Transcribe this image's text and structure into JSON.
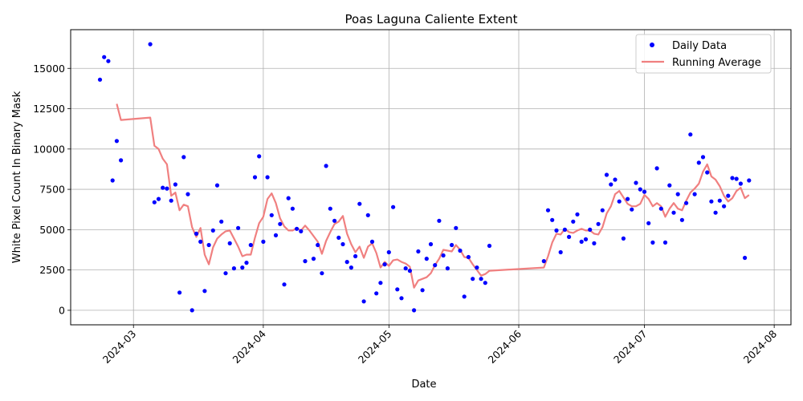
{
  "chart_data": {
    "type": "scatter",
    "title": "Poas Laguna Caliente Extent",
    "xlabel": "Date",
    "ylabel": "White Pixel Count In Binary Mask",
    "xlim": [
      "2024-02-15",
      "2024-08-05"
    ],
    "ylim": [
      -900,
      17400
    ],
    "grid": true,
    "legend_position": "top-right",
    "x_ticks": [
      "2024-03-01",
      "2024-04-01",
      "2024-05-01",
      "2024-06-01",
      "2024-07-01",
      "2024-08-01"
    ],
    "x_tick_labels": [
      "2024-03",
      "2024-04",
      "2024-05",
      "2024-06",
      "2024-07",
      "2024-08"
    ],
    "y_ticks": [
      0,
      2500,
      5000,
      7500,
      10000,
      12500,
      15000
    ],
    "y_tick_labels": [
      "0",
      "2500",
      "5000",
      "7500",
      "10000",
      "12500",
      "15000"
    ],
    "series": [
      {
        "name": "Daily Data",
        "kind": "scatter",
        "color": "#0000ff",
        "points": [
          [
            "2024-02-22",
            14300
          ],
          [
            "2024-02-23",
            15700
          ],
          [
            "2024-02-24",
            15450
          ],
          [
            "2024-02-25",
            8050
          ],
          [
            "2024-02-26",
            10500
          ],
          [
            "2024-02-27",
            9300
          ],
          [
            "2024-03-05",
            16500
          ],
          [
            "2024-03-06",
            6700
          ],
          [
            "2024-03-07",
            6900
          ],
          [
            "2024-03-08",
            7600
          ],
          [
            "2024-03-09",
            7550
          ],
          [
            "2024-03-10",
            6800
          ],
          [
            "2024-03-11",
            7800
          ],
          [
            "2024-03-12",
            1100
          ],
          [
            "2024-03-13",
            9500
          ],
          [
            "2024-03-14",
            7200
          ],
          [
            "2024-03-15",
            0
          ],
          [
            "2024-03-16",
            4750
          ],
          [
            "2024-03-17",
            4250
          ],
          [
            "2024-03-18",
            1200
          ],
          [
            "2024-03-19",
            4050
          ],
          [
            "2024-03-20",
            4950
          ],
          [
            "2024-03-21",
            7750
          ],
          [
            "2024-03-22",
            5500
          ],
          [
            "2024-03-23",
            2300
          ],
          [
            "2024-03-24",
            4150
          ],
          [
            "2024-03-25",
            2600
          ],
          [
            "2024-03-26",
            5100
          ],
          [
            "2024-03-27",
            2650
          ],
          [
            "2024-03-28",
            2950
          ],
          [
            "2024-03-29",
            4050
          ],
          [
            "2024-03-30",
            8250
          ],
          [
            "2024-03-31",
            9550
          ],
          [
            "2024-04-01",
            4250
          ],
          [
            "2024-04-02",
            8250
          ],
          [
            "2024-04-03",
            5900
          ],
          [
            "2024-04-04",
            4650
          ],
          [
            "2024-04-05",
            5350
          ],
          [
            "2024-04-06",
            1600
          ],
          [
            "2024-04-07",
            6950
          ],
          [
            "2024-04-08",
            6300
          ],
          [
            "2024-04-09",
            5050
          ],
          [
            "2024-04-10",
            4900
          ],
          [
            "2024-04-11",
            3050
          ],
          [
            "2024-04-13",
            3200
          ],
          [
            "2024-04-14",
            4050
          ],
          [
            "2024-04-15",
            2300
          ],
          [
            "2024-04-16",
            8950
          ],
          [
            "2024-04-17",
            6300
          ],
          [
            "2024-04-18",
            5550
          ],
          [
            "2024-04-19",
            4500
          ],
          [
            "2024-04-20",
            4100
          ],
          [
            "2024-04-21",
            3000
          ],
          [
            "2024-04-22",
            2650
          ],
          [
            "2024-04-23",
            3350
          ],
          [
            "2024-04-24",
            6600
          ],
          [
            "2024-04-25",
            550
          ],
          [
            "2024-04-26",
            5900
          ],
          [
            "2024-04-27",
            4250
          ],
          [
            "2024-04-28",
            1050
          ],
          [
            "2024-04-29",
            1700
          ],
          [
            "2024-04-30",
            2850
          ],
          [
            "2024-05-01",
            3600
          ],
          [
            "2024-05-02",
            6400
          ],
          [
            "2024-05-03",
            1300
          ],
          [
            "2024-05-04",
            750
          ],
          [
            "2024-05-05",
            2600
          ],
          [
            "2024-05-06",
            2450
          ],
          [
            "2024-05-07",
            0
          ],
          [
            "2024-05-08",
            3650
          ],
          [
            "2024-05-09",
            1250
          ],
          [
            "2024-05-10",
            3200
          ],
          [
            "2024-05-11",
            4100
          ],
          [
            "2024-05-12",
            2800
          ],
          [
            "2024-05-13",
            5550
          ],
          [
            "2024-05-14",
            3400
          ],
          [
            "2024-05-15",
            2600
          ],
          [
            "2024-05-16",
            4050
          ],
          [
            "2024-05-17",
            5100
          ],
          [
            "2024-05-18",
            3700
          ],
          [
            "2024-05-19",
            850
          ],
          [
            "2024-05-20",
            3300
          ],
          [
            "2024-05-21",
            1950
          ],
          [
            "2024-05-22",
            2650
          ],
          [
            "2024-05-23",
            1950
          ],
          [
            "2024-05-24",
            1700
          ],
          [
            "2024-05-25",
            4000
          ],
          [
            "2024-06-07",
            3050
          ],
          [
            "2024-06-08",
            6200
          ],
          [
            "2024-06-09",
            5600
          ],
          [
            "2024-06-10",
            4950
          ],
          [
            "2024-06-11",
            3600
          ],
          [
            "2024-06-12",
            5000
          ],
          [
            "2024-06-13",
            4550
          ],
          [
            "2024-06-14",
            5500
          ],
          [
            "2024-06-15",
            5950
          ],
          [
            "2024-06-16",
            4250
          ],
          [
            "2024-06-17",
            4400
          ],
          [
            "2024-06-18",
            5000
          ],
          [
            "2024-06-19",
            4150
          ],
          [
            "2024-06-20",
            5350
          ],
          [
            "2024-06-21",
            6200
          ],
          [
            "2024-06-22",
            8400
          ],
          [
            "2024-06-23",
            7800
          ],
          [
            "2024-06-24",
            8100
          ],
          [
            "2024-06-25",
            6750
          ],
          [
            "2024-06-26",
            4450
          ],
          [
            "2024-06-27",
            6900
          ],
          [
            "2024-06-28",
            6250
          ],
          [
            "2024-06-29",
            7900
          ],
          [
            "2024-06-30",
            7500
          ],
          [
            "2024-07-01",
            7350
          ],
          [
            "2024-07-02",
            5400
          ],
          [
            "2024-07-03",
            4200
          ],
          [
            "2024-07-04",
            8800
          ],
          [
            "2024-07-05",
            6300
          ],
          [
            "2024-07-06",
            4200
          ],
          [
            "2024-07-07",
            7750
          ],
          [
            "2024-07-08",
            6050
          ],
          [
            "2024-07-09",
            7200
          ],
          [
            "2024-07-10",
            5600
          ],
          [
            "2024-07-11",
            6650
          ],
          [
            "2024-07-12",
            10900
          ],
          [
            "2024-07-13",
            7200
          ],
          [
            "2024-07-14",
            9150
          ],
          [
            "2024-07-15",
            9500
          ],
          [
            "2024-07-16",
            8550
          ],
          [
            "2024-07-17",
            6750
          ],
          [
            "2024-07-18",
            6050
          ],
          [
            "2024-07-19",
            6800
          ],
          [
            "2024-07-20",
            6450
          ],
          [
            "2024-07-21",
            7100
          ],
          [
            "2024-07-22",
            8200
          ],
          [
            "2024-07-23",
            8150
          ],
          [
            "2024-07-24",
            7850
          ],
          [
            "2024-07-25",
            3250
          ],
          [
            "2024-07-26",
            8050
          ]
        ]
      },
      {
        "name": "Running Average",
        "kind": "line",
        "color": "#f08080",
        "points": [
          [
            "2024-02-26",
            12800
          ],
          [
            "2024-02-27",
            11800
          ],
          [
            "2024-03-05",
            11950
          ],
          [
            "2024-03-06",
            10200
          ],
          [
            "2024-03-07",
            10000
          ],
          [
            "2024-03-08",
            9400
          ],
          [
            "2024-03-09",
            9050
          ],
          [
            "2024-03-10",
            7100
          ],
          [
            "2024-03-11",
            7300
          ],
          [
            "2024-03-12",
            6200
          ],
          [
            "2024-03-13",
            6550
          ],
          [
            "2024-03-14",
            6450
          ],
          [
            "2024-03-15",
            5150
          ],
          [
            "2024-03-16",
            4550
          ],
          [
            "2024-03-17",
            5100
          ],
          [
            "2024-03-18",
            3450
          ],
          [
            "2024-03-19",
            2850
          ],
          [
            "2024-03-20",
            3900
          ],
          [
            "2024-03-21",
            4450
          ],
          [
            "2024-03-22",
            4700
          ],
          [
            "2024-03-23",
            4900
          ],
          [
            "2024-03-24",
            4950
          ],
          [
            "2024-03-25",
            4450
          ],
          [
            "2024-03-26",
            3950
          ],
          [
            "2024-03-27",
            3350
          ],
          [
            "2024-03-28",
            3450
          ],
          [
            "2024-03-29",
            3450
          ],
          [
            "2024-03-30",
            4500
          ],
          [
            "2024-03-31",
            5400
          ],
          [
            "2024-04-01",
            5800
          ],
          [
            "2024-04-02",
            6900
          ],
          [
            "2024-04-03",
            7250
          ],
          [
            "2024-04-04",
            6650
          ],
          [
            "2024-04-05",
            5700
          ],
          [
            "2024-04-06",
            5200
          ],
          [
            "2024-04-07",
            4950
          ],
          [
            "2024-04-08",
            4950
          ],
          [
            "2024-04-09",
            5100
          ],
          [
            "2024-04-10",
            4950
          ],
          [
            "2024-04-11",
            5250
          ],
          [
            "2024-04-12",
            4950
          ],
          [
            "2024-04-13",
            4600
          ],
          [
            "2024-04-14",
            4250
          ],
          [
            "2024-04-15",
            3500
          ],
          [
            "2024-04-16",
            4300
          ],
          [
            "2024-04-17",
            4850
          ],
          [
            "2024-04-18",
            5350
          ],
          [
            "2024-04-19",
            5500
          ],
          [
            "2024-04-20",
            5850
          ],
          [
            "2024-04-21",
            4750
          ],
          [
            "2024-04-22",
            4100
          ],
          [
            "2024-04-23",
            3600
          ],
          [
            "2024-04-24",
            3950
          ],
          [
            "2024-04-25",
            3250
          ],
          [
            "2024-04-26",
            3950
          ],
          [
            "2024-04-27",
            4150
          ],
          [
            "2024-04-28",
            3550
          ],
          [
            "2024-04-29",
            2650
          ],
          [
            "2024-04-30",
            3000
          ],
          [
            "2024-05-01",
            2750
          ],
          [
            "2024-05-02",
            3100
          ],
          [
            "2024-05-03",
            3150
          ],
          [
            "2024-05-04",
            3000
          ],
          [
            "2024-05-05",
            2900
          ],
          [
            "2024-05-06",
            2700
          ],
          [
            "2024-05-07",
            1400
          ],
          [
            "2024-05-08",
            1850
          ],
          [
            "2024-05-09",
            1950
          ],
          [
            "2024-05-10",
            2050
          ],
          [
            "2024-05-11",
            2300
          ],
          [
            "2024-05-12",
            2800
          ],
          [
            "2024-05-13",
            3200
          ],
          [
            "2024-05-14",
            3750
          ],
          [
            "2024-05-15",
            3700
          ],
          [
            "2024-05-16",
            3650
          ],
          [
            "2024-05-17",
            4050
          ],
          [
            "2024-05-18",
            3750
          ],
          [
            "2024-05-19",
            3300
          ],
          [
            "2024-05-20",
            3250
          ],
          [
            "2024-05-21",
            2850
          ],
          [
            "2024-05-22",
            2500
          ],
          [
            "2024-05-23",
            2150
          ],
          [
            "2024-05-24",
            2250
          ],
          [
            "2024-05-25",
            2450
          ],
          [
            "2024-06-07",
            2650
          ],
          [
            "2024-06-08",
            3350
          ],
          [
            "2024-06-09",
            4200
          ],
          [
            "2024-06-10",
            4750
          ],
          [
            "2024-06-11",
            4700
          ],
          [
            "2024-06-12",
            5050
          ],
          [
            "2024-06-13",
            4850
          ],
          [
            "2024-06-14",
            4800
          ],
          [
            "2024-06-15",
            4950
          ],
          [
            "2024-06-16",
            5050
          ],
          [
            "2024-06-17",
            4950
          ],
          [
            "2024-06-18",
            4950
          ],
          [
            "2024-06-19",
            4750
          ],
          [
            "2024-06-20",
            4700
          ],
          [
            "2024-06-21",
            5150
          ],
          [
            "2024-06-22",
            6000
          ],
          [
            "2024-06-23",
            6450
          ],
          [
            "2024-06-24",
            7200
          ],
          [
            "2024-06-25",
            7400
          ],
          [
            "2024-06-26",
            7000
          ],
          [
            "2024-06-27",
            6600
          ],
          [
            "2024-06-28",
            6450
          ],
          [
            "2024-06-29",
            6450
          ],
          [
            "2024-06-30",
            6600
          ],
          [
            "2024-07-01",
            7150
          ],
          [
            "2024-07-02",
            6900
          ],
          [
            "2024-07-03",
            6450
          ],
          [
            "2024-07-04",
            6650
          ],
          [
            "2024-07-05",
            6450
          ],
          [
            "2024-07-06",
            5800
          ],
          [
            "2024-07-07",
            6300
          ],
          [
            "2024-07-08",
            6650
          ],
          [
            "2024-07-09",
            6300
          ],
          [
            "2024-07-10",
            6200
          ],
          [
            "2024-07-11",
            6800
          ],
          [
            "2024-07-12",
            7300
          ],
          [
            "2024-07-13",
            7550
          ],
          [
            "2024-07-14",
            7850
          ],
          [
            "2024-07-15",
            8600
          ],
          [
            "2024-07-16",
            9050
          ],
          [
            "2024-07-17",
            8300
          ],
          [
            "2024-07-18",
            8100
          ],
          [
            "2024-07-19",
            7700
          ],
          [
            "2024-07-20",
            7100
          ],
          [
            "2024-07-21",
            6750
          ],
          [
            "2024-07-22",
            6950
          ],
          [
            "2024-07-23",
            7400
          ],
          [
            "2024-07-24",
            7600
          ],
          [
            "2024-07-25",
            6950
          ],
          [
            "2024-07-26",
            7150
          ]
        ]
      }
    ]
  }
}
